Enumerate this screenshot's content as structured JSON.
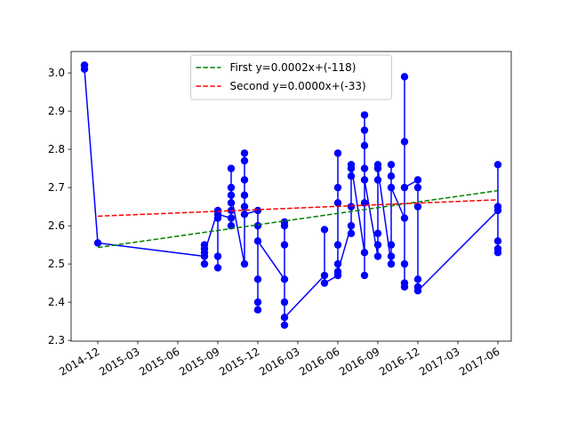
{
  "chart_data": {
    "type": "line",
    "xlim": [
      "2014-10",
      "2017-07"
    ],
    "xticks": [
      "2014-12",
      "2015-03",
      "2015-06",
      "2015-09",
      "2015-12",
      "2016-03",
      "2016-06",
      "2016-09",
      "2016-12",
      "2017-03",
      "2017-06"
    ],
    "ylim": [
      2.298,
      3.056
    ],
    "yticks": [
      2.3,
      2.4,
      2.5,
      2.6,
      2.7,
      2.8,
      2.9,
      {
        "value": 3,
        "label": "3.0"
      }
    ],
    "legend": "upper center",
    "series": [
      {
        "color": "#0000ff",
        "style": "solid",
        "marker": true,
        "x": [
          "2014-11",
          "2014-11",
          "2014-11",
          "2014-12",
          "2015-08",
          "2015-08",
          "2015-08",
          "2015-08",
          "2015-08",
          "2015-09",
          "2015-09",
          "2015-09",
          "2015-09",
          "2015-09",
          "2015-10",
          "2015-10",
          "2015-10",
          "2015-10",
          "2015-10",
          "2015-10",
          "2015-10",
          "2015-11",
          "2015-11",
          "2015-11",
          "2015-11",
          "2015-11",
          "2015-11",
          "2015-11",
          "2015-12",
          "2015-12",
          "2015-12",
          "2015-12",
          "2015-12",
          "2015-12",
          "2016-02",
          "2016-02",
          "2016-02",
          "2016-02",
          "2016-02",
          "2016-02",
          "2016-02",
          "2016-05",
          "2016-05",
          "2016-05",
          "2016-06",
          "2016-06",
          "2016-06",
          "2016-06",
          "2016-06",
          "2016-06",
          "2016-06",
          "2016-07",
          "2016-07",
          "2016-07",
          "2016-07",
          "2016-07",
          "2016-07",
          "2016-08",
          "2016-08",
          "2016-08",
          "2016-08",
          "2016-08",
          "2016-08",
          "2016-08",
          "2016-08",
          "2016-09",
          "2016-09",
          "2016-09",
          "2016-09",
          "2016-09",
          "2016-09",
          "2016-10",
          "2016-10",
          "2016-10",
          "2016-10",
          "2016-10",
          "2016-10",
          "2016-11",
          "2016-11",
          "2016-11",
          "2016-11",
          "2016-11",
          "2016-11",
          "2016-11",
          "2016-12",
          "2016-12",
          "2016-12",
          "2016-12",
          "2016-12",
          "2016-12",
          "2017-06",
          "2017-06",
          "2017-06",
          "2017-06",
          "2017-06",
          "2017-06"
        ],
        "values": [
          3.02,
          3.02,
          3.01,
          2.555,
          2.52,
          2.54,
          2.5,
          2.55,
          2.53,
          2.64,
          2.49,
          2.62,
          2.52,
          2.63,
          2.62,
          2.66,
          2.6,
          2.7,
          2.64,
          2.75,
          2.68,
          2.5,
          2.79,
          2.65,
          2.72,
          2.68,
          2.77,
          2.63,
          2.64,
          2.38,
          2.46,
          2.6,
          2.4,
          2.56,
          2.46,
          2.6,
          2.34,
          2.55,
          2.4,
          2.61,
          2.36,
          2.47,
          2.59,
          2.45,
          2.47,
          2.66,
          2.5,
          2.79,
          2.55,
          2.7,
          2.48,
          2.6,
          2.75,
          2.65,
          2.73,
          2.58,
          2.76,
          2.53,
          2.89,
          2.47,
          2.75,
          2.81,
          2.66,
          2.85,
          2.72,
          2.52,
          2.76,
          2.58,
          2.72,
          2.55,
          2.75,
          2.5,
          2.73,
          2.55,
          2.76,
          2.52,
          2.7,
          2.62,
          2.45,
          2.99,
          2.5,
          2.82,
          2.44,
          2.7,
          2.72,
          2.44,
          2.65,
          2.46,
          2.7,
          2.43,
          2.64,
          2.54,
          2.76,
          2.56,
          2.65,
          2.53
        ]
      },
      {
        "name": "First y=0.0002x+(-118)",
        "color": "#008000",
        "style": "dashed",
        "marker": false,
        "x": [
          "2014-12",
          "2017-06"
        ],
        "values": [
          2.543,
          2.692
        ]
      },
      {
        "name": "Second y=0.0000x+(-33)",
        "color": "#ff0000",
        "style": "dashed",
        "marker": false,
        "x": [
          "2014-12",
          "2017-06"
        ],
        "values": [
          2.625,
          2.668
        ]
      }
    ]
  }
}
